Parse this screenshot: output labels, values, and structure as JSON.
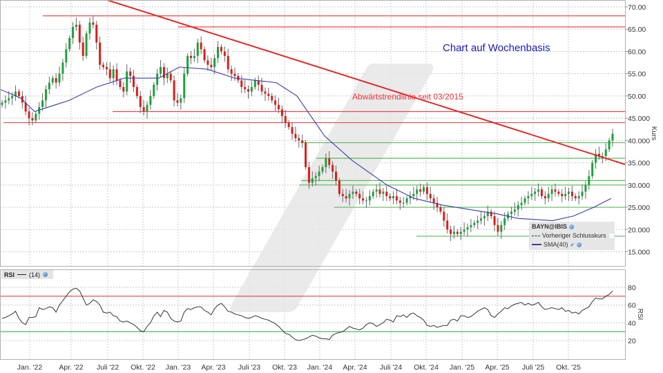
{
  "title": "Chart auf Wochenbasis",
  "annotation": "Abwärtstrendlinie seit 03/2015",
  "legend": {
    "symbol": "BAYN@IBIS",
    "prev_close_label": "Vorheriger Schlusskurs",
    "sma_label": "SMA(40)"
  },
  "rsi_panel": {
    "label": "RSI",
    "period": "(14)",
    "axis_title": "RSI"
  },
  "price_panel": {
    "axis_title": "Kurs"
  },
  "colors": {
    "up": "#1aa33a",
    "down": "#e01b1b",
    "sma": "#3a3aa8",
    "trendline": "#e02a2a",
    "resistance": "#e04a4a",
    "support": "#5cb85c",
    "rsi_line": "#333333",
    "rsi_overbought": "#e04040",
    "rsi_oversold": "#6cc07a",
    "title": "#1a1ab8"
  },
  "chart_data": [
    {
      "type": "candlestick",
      "title": "Chart auf Wochenbasis",
      "symbol": "BAYN@IBIS",
      "ylabel": "Kurs",
      "ylim": [
        13,
        72
      ],
      "yticks": [
        "15.000",
        "20.000",
        "25.000",
        "30.000",
        "35.000",
        "40.000",
        "45.000",
        "50.00",
        "55.00",
        "60.00",
        "65.00",
        "70.00"
      ],
      "xticks": [
        "Jan. '22",
        "Apr. '22",
        "Juli '22",
        "Okt. '22",
        "Jan. '23",
        "Apr. '23",
        "Juli '23",
        "Okt. '23",
        "Jan. '24",
        "Apr. '24",
        "Juli '24",
        "Okt. '24",
        "Jan. '25",
        "Apr. '25",
        "Juli '25",
        "Okt. '25"
      ],
      "weekly_close": [
        48.5,
        49,
        49.5,
        50,
        51,
        50,
        48.5,
        46.5,
        45,
        44.5,
        46,
        47.5,
        49,
        51.5,
        53,
        54,
        53,
        55,
        57.5,
        60.5,
        63,
        65.5,
        66,
        62,
        59,
        64,
        66.5,
        66,
        62,
        57,
        56.5,
        56,
        54,
        56,
        53.5,
        52,
        51,
        55.5,
        54.5,
        52,
        50,
        47.5,
        46.5,
        48,
        50,
        52.5,
        55,
        56.5,
        54,
        55,
        53.5,
        49,
        48.5,
        49.5,
        55,
        59,
        58.5,
        59,
        62,
        60.5,
        58,
        57,
        56.5,
        58.5,
        61,
        60,
        59,
        56,
        55,
        54.5,
        53.5,
        52,
        51.5,
        51,
        52,
        53.5,
        52.5,
        51,
        50.5,
        50,
        49,
        48,
        47,
        45.5,
        44,
        43,
        41.5,
        40.5,
        40,
        39.5,
        34,
        30.5,
        31.5,
        32,
        33,
        34,
        36,
        34.5,
        33,
        31,
        28,
        27.5,
        27,
        28,
        28.5,
        28,
        27,
        26.5,
        26.5,
        27.5,
        28.5,
        29,
        28,
        28.5,
        27.5,
        27,
        27.5,
        26.5,
        26,
        26,
        27,
        27.5,
        28,
        29,
        28.5,
        29.5,
        28,
        27,
        26,
        25,
        24,
        22,
        20,
        19,
        19.5,
        19,
        19.5,
        20,
        20.5,
        21,
        21.5,
        22,
        22.5,
        23,
        24,
        23,
        21,
        19.5,
        21,
        22.5,
        23.5,
        24,
        24.5,
        25.5,
        26,
        27,
        27.5,
        28,
        28.5,
        29,
        27.5,
        27,
        28,
        29,
        28.5,
        28,
        27.5,
        28,
        28.5,
        27.5,
        27,
        27.5,
        28.5,
        30,
        32,
        35,
        37,
        36.5,
        36.5,
        38,
        40,
        41.5
      ],
      "sma40": {
        "label": "SMA(40)",
        "points_approx": [
          [
            0,
            51.5
          ],
          [
            30,
            49.5
          ],
          [
            50,
            46.5
          ],
          [
            80,
            48
          ],
          [
            100,
            49
          ],
          [
            140,
            52
          ],
          [
            180,
            54
          ],
          [
            230,
            54
          ],
          [
            260,
            56.5
          ],
          [
            300,
            56
          ],
          [
            340,
            54
          ],
          [
            400,
            53
          ],
          [
            430,
            50
          ],
          [
            470,
            41
          ],
          [
            510,
            35.5
          ],
          [
            560,
            30
          ],
          [
            600,
            27
          ],
          [
            640,
            25.5
          ],
          [
            680,
            24.5
          ],
          [
            720,
            23.5
          ],
          [
            750,
            22.5
          ],
          [
            800,
            22
          ],
          [
            830,
            23
          ],
          [
            860,
            25
          ],
          [
            885,
            27
          ]
        ]
      },
      "horizontal_lines": {
        "resistance": [
          68,
          65.5,
          46.5,
          44
        ],
        "support": [
          39.5,
          36,
          31,
          30,
          25,
          18.5
        ]
      },
      "trendline": {
        "label": "Abwärtstrendlinie seit 03/2015",
        "from": [
          "Nov. '21",
          74
        ],
        "to": [
          "Dez. '25",
          35
        ]
      },
      "legend": [
        "BAYN@IBIS",
        "Vorheriger Schlusskurs",
        "SMA(40)"
      ]
    },
    {
      "type": "line",
      "title": "RSI (14)",
      "ylabel": "RSI",
      "ylim": [
        5,
        95
      ],
      "yticks": [
        20,
        40,
        60,
        80
      ],
      "reference_lines": {
        "overbought": 70,
        "oversold": 30
      },
      "values": [
        45,
        46,
        48,
        50,
        53,
        45,
        40,
        38,
        46,
        46,
        47,
        57,
        55,
        56,
        58,
        57,
        52,
        60,
        65,
        70,
        75,
        78,
        79,
        76,
        68,
        60,
        62,
        66,
        64,
        60,
        52,
        51,
        52,
        48,
        47,
        42,
        41,
        42,
        40,
        38,
        35,
        31,
        30,
        36,
        40,
        48,
        52,
        47,
        54,
        52,
        45,
        42,
        41,
        42,
        52,
        56,
        55,
        57,
        58,
        58,
        54,
        52,
        49,
        56,
        60,
        62,
        58,
        53,
        52,
        50,
        49,
        48,
        46,
        45,
        46,
        48,
        47,
        45,
        44,
        43,
        41,
        39,
        36,
        32,
        28,
        27,
        24,
        21,
        20,
        21,
        22,
        24,
        26,
        25,
        23,
        22,
        22,
        21,
        26,
        28,
        29,
        30,
        33,
        36,
        34,
        33,
        32,
        34,
        38,
        40,
        39,
        36,
        38,
        40,
        44,
        43,
        41,
        48,
        47,
        49,
        46,
        50,
        51,
        48,
        46,
        43,
        37,
        36,
        37,
        35,
        36,
        37,
        37,
        43,
        44,
        42,
        48,
        48,
        46,
        47,
        50,
        53,
        55,
        57,
        55,
        48,
        46,
        50,
        53,
        57,
        56,
        59,
        61,
        62,
        63,
        60,
        62,
        60,
        61,
        63,
        58,
        55,
        56,
        57,
        56,
        55,
        57,
        53,
        54,
        51,
        52,
        50,
        54,
        56,
        58,
        64,
        68,
        67,
        67,
        70,
        72,
        76
      ]
    }
  ]
}
